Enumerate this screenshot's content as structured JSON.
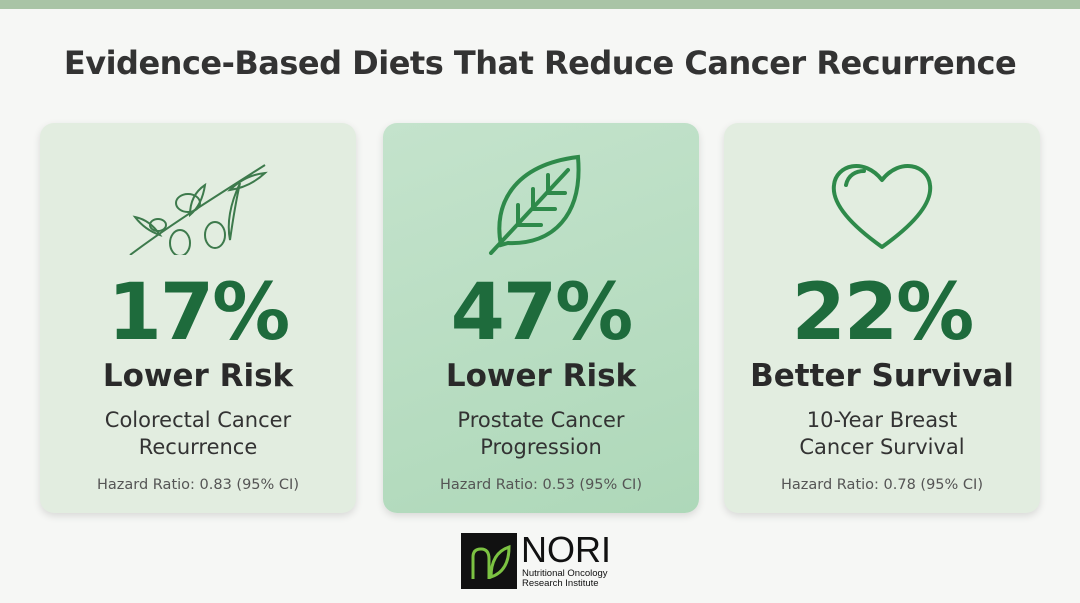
{
  "title": "Evidence-Based Diets That Reduce Cancer Recurrence",
  "cards": [
    {
      "stat": "17%",
      "label": "Lower Risk",
      "description": [
        "Colorectal Cancer",
        "Recurrence"
      ],
      "note": "Hazard Ratio: 0.83 (95% CI)"
    },
    {
      "stat": "47%",
      "label": "Lower Risk",
      "description": [
        "Prostate Cancer",
        "Progression"
      ],
      "note": "Hazard Ratio: 0.53 (95% CI)"
    },
    {
      "stat": "22%",
      "label": "Better Survival",
      "description": [
        "10-Year Breast",
        "Cancer Survival"
      ],
      "note": "Hazard Ratio: 0.78 (95% CI)"
    }
  ],
  "logo": {
    "name": "NORI",
    "subtitle": [
      "Nutritional Oncology",
      "Research Institute"
    ]
  }
}
